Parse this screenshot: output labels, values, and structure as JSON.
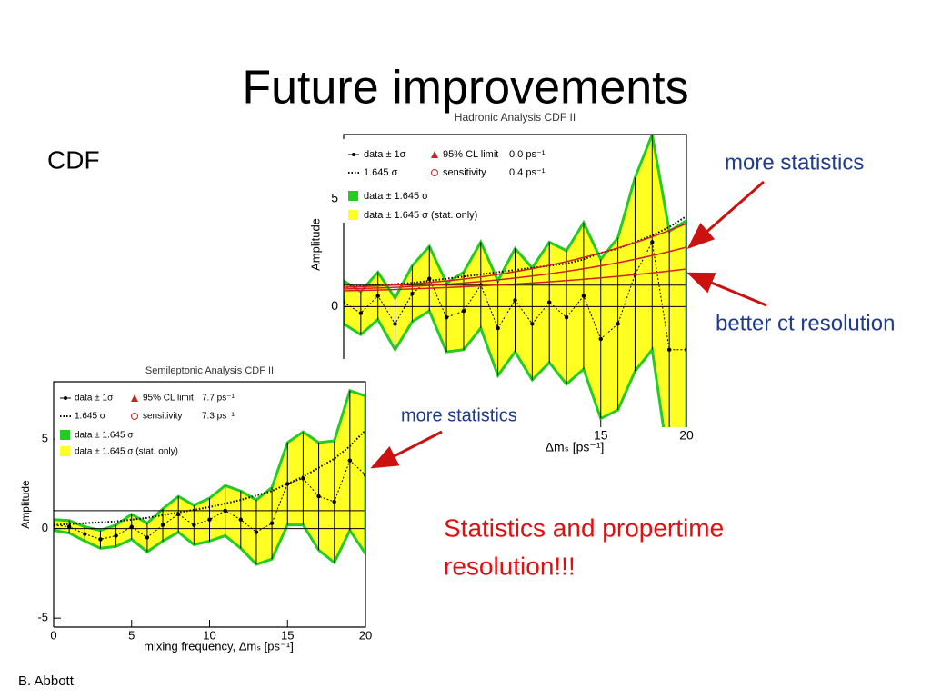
{
  "title": "Future improvements",
  "section_label": "CDF",
  "footer": "B. Abbott",
  "annotations": {
    "hadronic_note": "more statistics",
    "resolution_note": "better ct resolution",
    "semileptonic_note": "more statistics",
    "summary": [
      "Statistics and propertime",
      "resolution!!!"
    ]
  },
  "chart_data": [
    {
      "type": "amplitude-scan",
      "title": "Hadronic Analysis CDF II",
      "xlabel": "Δmₛ [ps⁻¹]",
      "ylabel": "Amplitude",
      "x": [
        0,
        1,
        2,
        3,
        4,
        5,
        6,
        7,
        8,
        9,
        10,
        11,
        12,
        13,
        14,
        15,
        16,
        17,
        18,
        19,
        20
      ],
      "series": [
        {
          "name": "data ± 1σ",
          "color": "#000000",
          "values": [
            0.2,
            -0.3,
            0.5,
            -0.8,
            0.6,
            1.3,
            -0.5,
            -0.2,
            1.0,
            -1.0,
            0.3,
            -0.8,
            0.2,
            -0.5,
            0.5,
            -1.5,
            -0.8,
            1.5,
            3.0,
            -2.0,
            -2.0
          ],
          "errors": [
            1.0,
            1.0,
            1.1,
            1.2,
            1.3,
            1.5,
            1.6,
            1.8,
            2.0,
            2.2,
            2.4,
            2.6,
            2.8,
            3.1,
            3.4,
            3.7,
            4.0,
            4.5,
            5.0,
            5.5,
            6.0
          ]
        },
        {
          "name": "1.645 σ",
          "color": "#000000",
          "values": [
            0.9,
            0.95,
            1.0,
            1.05,
            1.1,
            1.2,
            1.3,
            1.4,
            1.5,
            1.6,
            1.7,
            1.8,
            1.9,
            2.0,
            2.2,
            2.5,
            2.7,
            3.0,
            3.3,
            3.7,
            4.2
          ]
        }
      ],
      "limit": {
        "label": "95% CL limit",
        "text": "0.0 ps⁻¹",
        "color": "#cc2222"
      },
      "sensitivity": {
        "label": "sensitivity",
        "text": "0.4 ps⁻¹",
        "color": "#cc2222"
      },
      "bands": [
        {
          "name": "data ± 1.645 σ",
          "color": "#22cc22"
        },
        {
          "name": "data ± 1.645 σ (stat. only)",
          "color": "#ffff22"
        }
      ],
      "reference_level": 1,
      "xlim": [
        0,
        20
      ],
      "ylim": [
        -5.6,
        8
      ],
      "xticks": [
        15,
        20
      ],
      "yticks": [
        0,
        5
      ]
    },
    {
      "type": "amplitude-scan",
      "title": "Semileptonic Analysis CDF II",
      "xlabel": "mixing frequency, Δmₛ [ps⁻¹]",
      "ylabel": "Amplitude",
      "x": [
        0,
        1,
        2,
        3,
        4,
        5,
        6,
        7,
        8,
        9,
        10,
        11,
        12,
        13,
        14,
        15,
        16,
        17,
        18,
        19,
        20
      ],
      "series": [
        {
          "name": "data ± 1σ",
          "color": "#000000",
          "values": [
            0.2,
            0.1,
            -0.3,
            -0.6,
            -0.4,
            0.1,
            -0.5,
            0.2,
            0.8,
            0.2,
            0.5,
            1.0,
            0.5,
            -0.2,
            0.3,
            2.5,
            2.8,
            1.8,
            1.5,
            3.8,
            3.0
          ],
          "errors": [
            0.3,
            0.35,
            0.4,
            0.5,
            0.6,
            0.7,
            0.8,
            0.9,
            1.0,
            1.1,
            1.2,
            1.4,
            1.6,
            1.8,
            2.0,
            2.3,
            2.6,
            3.0,
            3.4,
            3.9,
            4.4
          ]
        },
        {
          "name": "1.645 σ",
          "color": "#000000",
          "values": [
            0.2,
            0.25,
            0.3,
            0.35,
            0.4,
            0.5,
            0.6,
            0.75,
            0.9,
            1.05,
            1.2,
            1.4,
            1.6,
            1.85,
            2.1,
            2.5,
            2.9,
            3.4,
            3.9,
            4.6,
            5.5
          ]
        }
      ],
      "limit": {
        "label": "95% CL limit",
        "text": "7.7 ps⁻¹",
        "color": "#cc2222"
      },
      "sensitivity": {
        "label": "sensitivity",
        "text": "7.3 ps⁻¹",
        "color": "#cc2222"
      },
      "bands": [
        {
          "name": "data ± 1.645 σ",
          "color": "#22cc22"
        },
        {
          "name": "data ± 1.645 σ (stat. only)",
          "color": "#ffff22"
        }
      ],
      "reference_level": 1,
      "xlim": [
        0,
        20
      ],
      "ylim": [
        -5.5,
        8.2
      ],
      "xticks": [
        0,
        5,
        10,
        15,
        20
      ],
      "yticks": [
        -5,
        0,
        5
      ]
    }
  ]
}
